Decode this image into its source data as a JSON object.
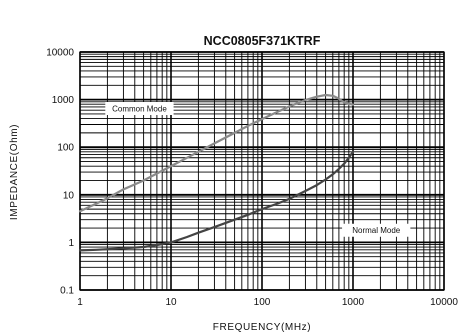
{
  "chart_data": {
    "type": "line",
    "title": "NCC0805F371KTRF",
    "xlabel": "FREQUENCY(MHz)",
    "ylabel": "IMPEDANCE(Ohm)",
    "x_scale": "log",
    "y_scale": "log",
    "xlim": [
      1,
      10000
    ],
    "ylim": [
      0.1,
      10000
    ],
    "x_ticks": [
      1,
      10,
      100,
      1000,
      10000
    ],
    "x_tick_labels": [
      "1",
      "10",
      "100",
      "1000",
      "10000"
    ],
    "y_ticks": [
      0.1,
      1,
      10,
      100,
      1000,
      10000
    ],
    "y_tick_labels": [
      "0.1",
      "1",
      "10",
      "100",
      "1000",
      "10000"
    ],
    "grid": true,
    "series": [
      {
        "name": "Common Mode",
        "color": "#8a8a8a",
        "x": [
          1,
          1.5,
          2,
          3,
          5,
          7,
          10,
          15,
          20,
          30,
          50,
          70,
          100,
          150,
          200,
          300,
          400,
          500,
          600,
          700,
          800,
          1000
        ],
        "y": [
          4.5,
          6.5,
          8.5,
          13,
          20,
          28,
          40,
          60,
          80,
          120,
          200,
          280,
          390,
          560,
          720,
          980,
          1150,
          1250,
          1200,
          1050,
          870,
          780
        ]
      },
      {
        "name": "Normal Mode",
        "color": "#444444",
        "x": [
          1,
          1.5,
          2,
          3,
          5,
          7,
          10,
          15,
          20,
          30,
          50,
          70,
          100,
          150,
          200,
          300,
          400,
          500,
          600,
          700,
          800,
          900,
          1000
        ],
        "y": [
          0.68,
          0.7,
          0.72,
          0.75,
          0.8,
          0.88,
          1.0,
          1.3,
          1.6,
          2.1,
          3.0,
          3.8,
          5.0,
          6.6,
          8.2,
          12,
          16,
          21,
          27,
          35,
          45,
          60,
          80
        ]
      }
    ],
    "annotations": [
      {
        "text": "Common Mode",
        "x": 4.5,
        "y": 650
      },
      {
        "text": "Normal Mode",
        "x": 1800,
        "y": 1.8
      }
    ]
  }
}
